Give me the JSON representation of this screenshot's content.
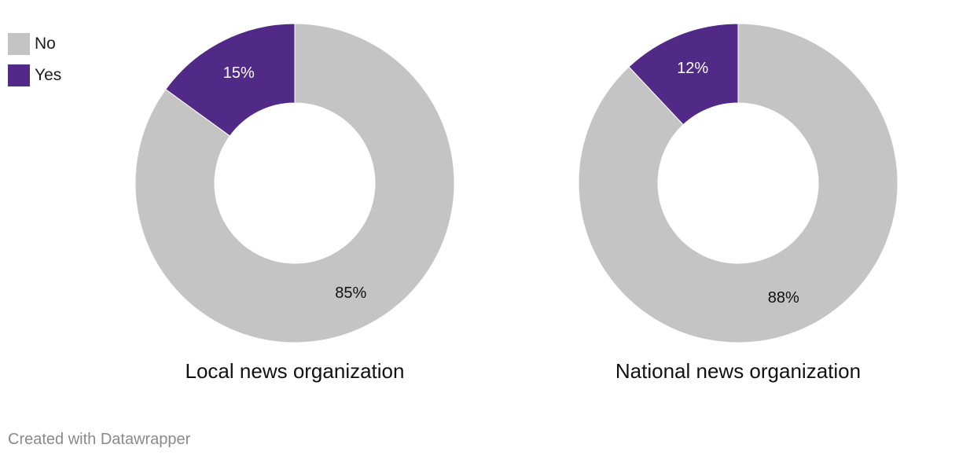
{
  "legend": [
    {
      "label": "No",
      "color": "#c4c4c4"
    },
    {
      "label": "Yes",
      "color": "#512a87"
    }
  ],
  "chart_data": [
    {
      "type": "pie",
      "variant": "donut",
      "title": "Local news organization",
      "slices": [
        {
          "label": "No",
          "value": 85,
          "display": "85%",
          "color": "#c4c4c4"
        },
        {
          "label": "Yes",
          "value": 15,
          "display": "15%",
          "color": "#512a87"
        }
      ]
    },
    {
      "type": "pie",
      "variant": "donut",
      "title": "National news organization",
      "slices": [
        {
          "label": "No",
          "value": 88,
          "display": "88%",
          "color": "#c4c4c4"
        },
        {
          "label": "Yes",
          "value": 12,
          "display": "12%",
          "color": "#512a87"
        }
      ]
    }
  ],
  "footer": {
    "credit": "Created with Datawrapper"
  }
}
